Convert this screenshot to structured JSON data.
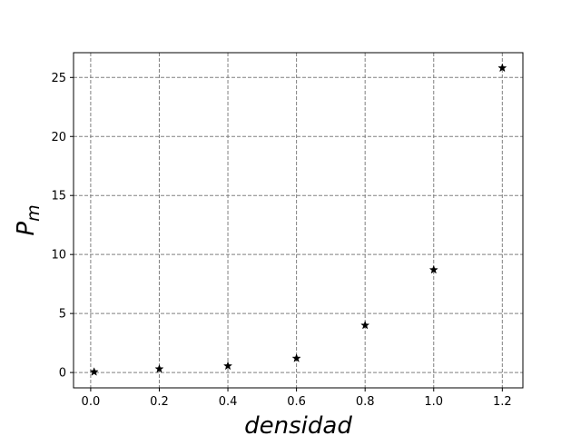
{
  "chart_data": {
    "type": "scatter",
    "xlabel": "densidad",
    "ylabel": {
      "base": "P",
      "subscript": "m"
    },
    "xlim": [
      -0.05,
      1.26
    ],
    "ylim": [
      -1.3,
      27.1
    ],
    "xticks": [
      0.0,
      0.2,
      0.4,
      0.6,
      0.8,
      1.0,
      1.2
    ],
    "xtick_labels": [
      "0.0",
      "0.2",
      "0.4",
      "0.6",
      "0.8",
      "1.0",
      "1.2"
    ],
    "yticks": [
      0,
      5,
      10,
      15,
      20,
      25
    ],
    "ytick_labels": [
      "0",
      "5",
      "10",
      "15",
      "20",
      "25"
    ],
    "grid": true,
    "marker": "star",
    "marker_color": "#000000",
    "grid_color": "#808080",
    "series": [
      {
        "x": [
          0.01,
          0.2,
          0.4,
          0.6,
          0.8,
          1.0,
          1.2
        ],
        "y": [
          0.05,
          0.3,
          0.55,
          1.2,
          4.0,
          8.7,
          25.8
        ]
      }
    ]
  }
}
